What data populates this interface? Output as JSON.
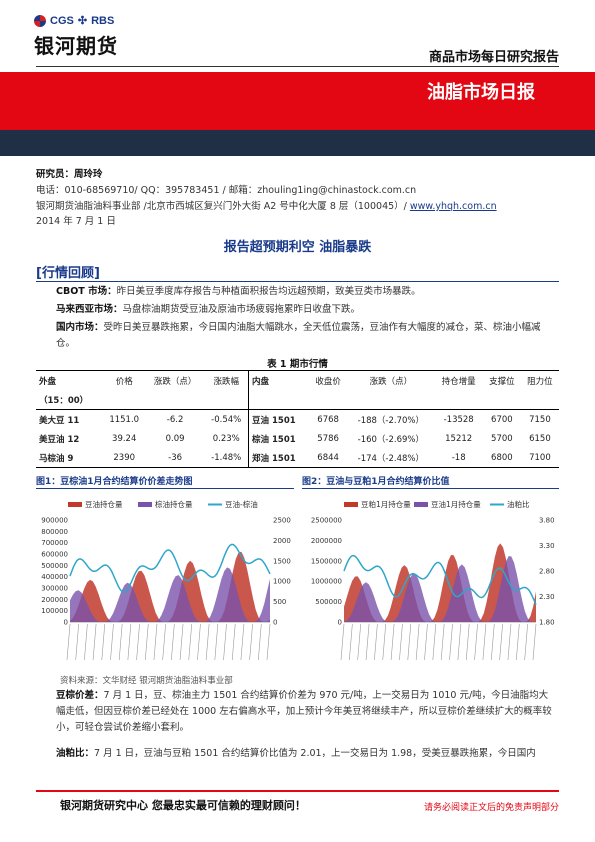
{
  "header": {
    "logo_cgs": "CGS",
    "logo_rbs": "RBS",
    "brand_cn": "银河期货",
    "report_type": "商品市场每日研究报告",
    "band_title": "油脂市场日报"
  },
  "meta": {
    "researcher_label": "研究员：",
    "researcher_name": "周玲玲",
    "contact": "电话：010-68569710/ QQ：395783451 / 邮箱：zhouling1ing@chinastock.com.cn",
    "address": "银河期货油脂油料事业部 /北京市西城区复兴门外大街 A2 号中化大厦 8 层（100045）/",
    "website": "www.yhqh.com.cn",
    "date": "2014 年 7 月 1 日"
  },
  "headline": "报告超预期利空  油脂暴跌",
  "section_tag": "[行情回顾]",
  "paragraphs": {
    "cbot_lead": "CBOT 市场：",
    "cbot_text": "昨日美豆季度库存报告与种植面积报告均远超预期，致美豆类市场暴跌。",
    "malaysia_lead": "马来西亚市场：",
    "malaysia_text": "马盘棕油期货受豆油及原油市场疲弱拖累昨日收盘下跌。",
    "domestic_lead": "国内市场：",
    "domestic_text": "受昨日美豆暴跌拖累，今日国内油脂大幅跳水，全天低位震荡，豆油作有大幅度的减仓，菜、棕油小幅减仓。"
  },
  "table": {
    "caption": "表 1   期市行情",
    "headers_left": [
      "外盘",
      "价格",
      "涨跌（点）",
      "涨跌幅"
    ],
    "headers_left_sub": "（15：00）",
    "headers_right": [
      "内盘",
      "收盘价",
      "涨跌（点）",
      "持仓增量",
      "支撑位",
      "阻力位"
    ],
    "rows": [
      {
        "outer": "美大豆 11",
        "price": "1151.0",
        "chg": "-6.2",
        "pct": "-0.54%",
        "inner": "豆油 1501",
        "close": "6768",
        "ichg": "-188（-2.70%）",
        "oi": "-13528",
        "support": "6700",
        "resist": "7150"
      },
      {
        "outer": "美豆油 12",
        "price": "39.24",
        "chg": "0.09",
        "pct": "0.23%",
        "inner": "棕油 1501",
        "close": "5786",
        "ichg": "-160（-2.69%）",
        "oi": "15212",
        "support": "5700",
        "resist": "6150"
      },
      {
        "outer": "马棕油 9",
        "price": "2390",
        "chg": "-36",
        "pct": "-1.48%",
        "inner": "郑油 1501",
        "close": "6844",
        "ichg": "-174（-2.48%）",
        "oi": "-18",
        "support": "6800",
        "resist": "7100"
      }
    ]
  },
  "figure1": {
    "title": "图1：豆棕油1月合约结算价价差走势图",
    "chart_data": {
      "type": "area",
      "series": [
        {
          "name": "豆油持仓量"
        },
        {
          "name": "棕油持仓量"
        },
        {
          "name": "豆油-棕油"
        }
      ],
      "y_left_ticks": [
        "900000",
        "800000",
        "700000",
        "600000",
        "500000",
        "400000",
        "300000",
        "200000",
        "100000",
        "0"
      ],
      "y_right_ticks": [
        "2500",
        "2000",
        "1500",
        "1000",
        "500",
        "0"
      ],
      "ylim_left": [
        0,
        900000
      ],
      "ylim_right": [
        0,
        2500
      ]
    }
  },
  "figure2": {
    "title": "图2：豆油与豆粕1月合约结算价比值",
    "chart_data": {
      "type": "area",
      "series": [
        {
          "name": "豆粕1月持仓量"
        },
        {
          "name": "豆油1月持仓量"
        },
        {
          "name": "油粕比"
        }
      ],
      "y_left_ticks": [
        "2500000",
        "2000000",
        "1500000",
        "1000000",
        "500000",
        "0"
      ],
      "y_right_ticks": [
        "3.80",
        "3.30",
        "2.80",
        "2.30",
        "1.80"
      ],
      "ylim_left": [
        0,
        2500000
      ],
      "ylim_right": [
        1.8,
        3.8
      ]
    }
  },
  "source": "资料来源：文华财经   银河期货油脂油料事业部",
  "analysis": {
    "spread_lead": "豆棕价差：",
    "spread_text": "7 月 1 日，豆、棕油主力 1501 合约结算价价差为 970 元/吨，上一交易日为 1010 元/吨，今日油脂均大幅走低，但因豆棕价差已经处在 1000 左右偏高水平，加上预计今年美豆将继续丰产，所以豆棕价差继续扩大的概率较小，可轻仓尝试价差缩小套利。",
    "ratio_lead": "油粕比：",
    "ratio_text": "7 月 1 日，豆油与豆粕 1501 合约结算价比值为 2.01，上一交易日为 1.98，受美豆暴跌拖累，今日国内"
  },
  "footer": {
    "left": "银河期货研究中心  您最忠实最可信赖的理财顾问！",
    "right": "请务必阅读正文后的免责声明部分"
  },
  "colors": {
    "brand_red": "#e30613",
    "brand_blue": "#1a3a8a",
    "series_red": "#c0392b",
    "series_purple": "#7b52ab",
    "series_cyan": "#2ea7c9"
  }
}
